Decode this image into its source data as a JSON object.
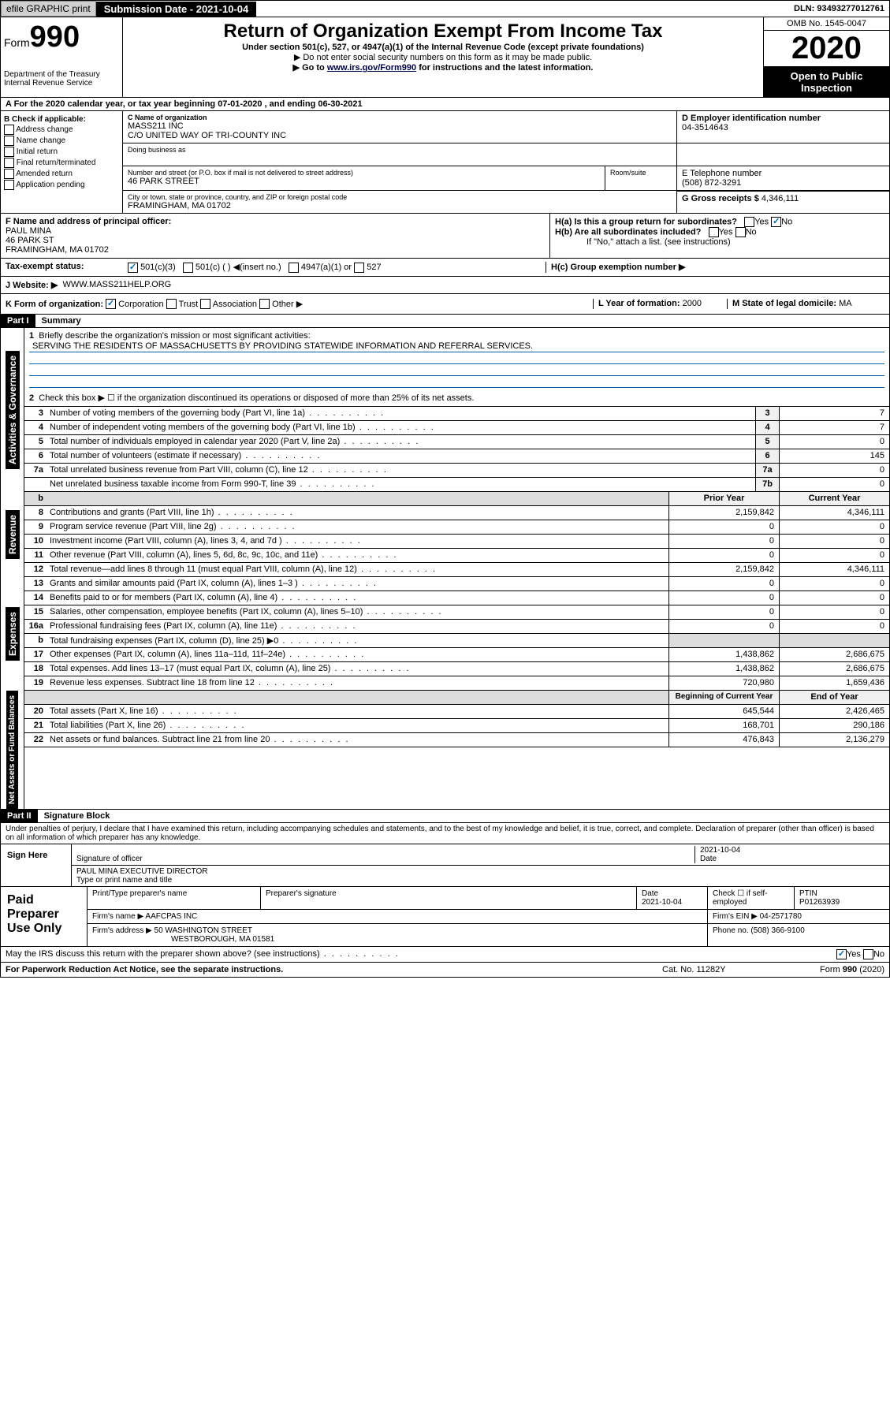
{
  "topbar": {
    "efile": "efile GRAPHIC print",
    "sub_label": "Submission Date - 2021-10-04",
    "dln": "DLN: 93493277012761"
  },
  "header": {
    "form": "Form",
    "num": "990",
    "dept": "Department of the Treasury\nInternal Revenue Service",
    "title": "Return of Organization Exempt From Income Tax",
    "sub": "Under section 501(c), 527, or 4947(a)(1) of the Internal Revenue Code (except private foundations)",
    "note1": "▶ Do not enter social security numbers on this form as it may be made public.",
    "note2_pre": "▶ Go to ",
    "note2_link": "www.irs.gov/Form990",
    "note2_post": " for instructions and the latest information.",
    "omb": "OMB No. 1545-0047",
    "year": "2020",
    "open": "Open to Public Inspection"
  },
  "rowA": "A For the 2020 calendar year, or tax year beginning 07-01-2020    , and ending 06-30-2021",
  "colB": {
    "hdr": "B Check if applicable:",
    "items": [
      "Address change",
      "Name change",
      "Initial return",
      "Final return/terminated",
      "Amended return",
      "Application pending"
    ]
  },
  "colC": {
    "name_lbl": "C Name of organization",
    "name1": "MASS211 INC",
    "name2": "C/O UNITED WAY OF TRI-COUNTY INC",
    "dba_lbl": "Doing business as",
    "addr_lbl": "Number and street (or P.O. box if mail is not delivered to street address)",
    "room_lbl": "Room/suite",
    "addr": "46 PARK STREET",
    "city_lbl": "City or town, state or province, country, and ZIP or foreign postal code",
    "city": "FRAMINGHAM, MA  01702"
  },
  "colD": {
    "ein_lbl": "D Employer identification number",
    "ein": "04-3514643",
    "tel_lbl": "E Telephone number",
    "tel": "(508) 872-3291",
    "gross_lbl": "G Gross receipts $",
    "gross": "4,346,111"
  },
  "rowF": {
    "lbl": "F  Name and address of principal officer:",
    "name": "PAUL MINA",
    "addr1": "46 PARK ST",
    "addr2": "FRAMINGHAM, MA  01702"
  },
  "rowH": {
    "ha": "H(a)  Is this a group return for subordinates?",
    "hb": "H(b)  Are all subordinates included?",
    "hb_note": "If \"No,\" attach a list. (see instructions)",
    "hc": "H(c)  Group exemption number ▶"
  },
  "status": {
    "lbl": "Tax-exempt status:",
    "o1": "501(c)(3)",
    "o2": "501(c) (  ) ◀(insert no.)",
    "o3": "4947(a)(1) or",
    "o4": "527"
  },
  "rowJ": {
    "lbl": "J   Website: ▶",
    "val": "WWW.MASS211HELP.ORG"
  },
  "rowK": {
    "lbl": "K Form of organization:",
    "corp": "Corporation",
    "trust": "Trust",
    "assoc": "Association",
    "other": "Other ▶",
    "l_lbl": "L Year of formation:",
    "l_val": "2000",
    "m_lbl": "M State of legal domicile:",
    "m_val": "MA"
  },
  "part1": {
    "hdr": "Part I",
    "title": "Summary"
  },
  "summary": {
    "l1": "Briefly describe the organization's mission or most significant activities:",
    "mission": "SERVING THE RESIDENTS OF MASSACHUSETTS BY PROVIDING STATEWIDE INFORMATION AND REFERRAL SERVICES.",
    "l2": "Check this box ▶ ☐  if the organization discontinued its operations or disposed of more than 25% of its net assets.",
    "lines": [
      {
        "n": "3",
        "d": "Number of voting members of the governing body (Part VI, line 1a)",
        "b": "3",
        "v": "7"
      },
      {
        "n": "4",
        "d": "Number of independent voting members of the governing body (Part VI, line 1b)",
        "b": "4",
        "v": "7"
      },
      {
        "n": "5",
        "d": "Total number of individuals employed in calendar year 2020 (Part V, line 2a)",
        "b": "5",
        "v": "0"
      },
      {
        "n": "6",
        "d": "Total number of volunteers (estimate if necessary)",
        "b": "6",
        "v": "145"
      },
      {
        "n": "7a",
        "d": "Total unrelated business revenue from Part VIII, column (C), line 12",
        "b": "7a",
        "v": "0"
      },
      {
        "n": "",
        "d": "Net unrelated business taxable income from Form 990-T, line 39",
        "b": "7b",
        "v": "0"
      }
    ],
    "col_hdr1": "Prior Year",
    "col_hdr2": "Current Year",
    "rev": [
      {
        "n": "8",
        "d": "Contributions and grants (Part VIII, line 1h)",
        "p": "2,159,842",
        "c": "4,346,111"
      },
      {
        "n": "9",
        "d": "Program service revenue (Part VIII, line 2g)",
        "p": "0",
        "c": "0"
      },
      {
        "n": "10",
        "d": "Investment income (Part VIII, column (A), lines 3, 4, and 7d )",
        "p": "0",
        "c": "0"
      },
      {
        "n": "11",
        "d": "Other revenue (Part VIII, column (A), lines 5, 6d, 8c, 9c, 10c, and 11e)",
        "p": "0",
        "c": "0"
      },
      {
        "n": "12",
        "d": "Total revenue—add lines 8 through 11 (must equal Part VIII, column (A), line 12)",
        "p": "2,159,842",
        "c": "4,346,111"
      }
    ],
    "exp": [
      {
        "n": "13",
        "d": "Grants and similar amounts paid (Part IX, column (A), lines 1–3 )",
        "p": "0",
        "c": "0"
      },
      {
        "n": "14",
        "d": "Benefits paid to or for members (Part IX, column (A), line 4)",
        "p": "0",
        "c": "0"
      },
      {
        "n": "15",
        "d": "Salaries, other compensation, employee benefits (Part IX, column (A), lines 5–10)",
        "p": "0",
        "c": "0"
      },
      {
        "n": "16a",
        "d": "Professional fundraising fees (Part IX, column (A), line 11e)",
        "p": "0",
        "c": "0"
      },
      {
        "n": "b",
        "d": "Total fundraising expenses (Part IX, column (D), line 25) ▶0",
        "p": "",
        "c": "",
        "shade": true
      },
      {
        "n": "17",
        "d": "Other expenses (Part IX, column (A), lines 11a–11d, 11f–24e)",
        "p": "1,438,862",
        "c": "2,686,675"
      },
      {
        "n": "18",
        "d": "Total expenses. Add lines 13–17 (must equal Part IX, column (A), line 25)",
        "p": "1,438,862",
        "c": "2,686,675"
      },
      {
        "n": "19",
        "d": "Revenue less expenses. Subtract line 18 from line 12",
        "p": "720,980",
        "c": "1,659,436"
      }
    ],
    "na_hdr1": "Beginning of Current Year",
    "na_hdr2": "End of Year",
    "na": [
      {
        "n": "20",
        "d": "Total assets (Part X, line 16)",
        "p": "645,544",
        "c": "2,426,465"
      },
      {
        "n": "21",
        "d": "Total liabilities (Part X, line 26)",
        "p": "168,701",
        "c": "290,186"
      },
      {
        "n": "22",
        "d": "Net assets or fund balances. Subtract line 21 from line 20",
        "p": "476,843",
        "c": "2,136,279"
      }
    ]
  },
  "tabs": {
    "gov": "Activities & Governance",
    "rev": "Revenue",
    "exp": "Expenses",
    "na": "Net Assets or Fund Balances"
  },
  "part2": {
    "hdr": "Part II",
    "title": "Signature Block"
  },
  "perjury": "Under penalties of perjury, I declare that I have examined this return, including accompanying schedules and statements, and to the best of my knowledge and belief, it is true, correct, and complete. Declaration of preparer (other than officer) is based on all information of which preparer has any knowledge.",
  "sign": {
    "here": "Sign Here",
    "sig_lbl": "Signature of officer",
    "date_lbl": "Date",
    "date": "2021-10-04",
    "name": "PAUL MINA  EXECUTIVE DIRECTOR",
    "name_lbl": "Type or print name and title"
  },
  "paid": {
    "hdr": "Paid Preparer Use Only",
    "c1": "Print/Type preparer's name",
    "c2": "Preparer's signature",
    "c3": "Date",
    "c3v": "2021-10-04",
    "c4": "Check ☐ if self-employed",
    "c5": "PTIN",
    "c5v": "P01263939",
    "firm_lbl": "Firm's name    ▶",
    "firm": "AAFCPAS INC",
    "ein_lbl": "Firm's EIN ▶",
    "ein": "04-2571780",
    "addr_lbl": "Firm's address ▶",
    "addr1": "50 WASHINGTON STREET",
    "addr2": "WESTBOROUGH, MA  01581",
    "ph_lbl": "Phone no.",
    "ph": "(508) 366-9100"
  },
  "discuss": "May the IRS discuss this return with the preparer shown above? (see instructions)",
  "footer": {
    "pra": "For Paperwork Reduction Act Notice, see the separate instructions.",
    "cat": "Cat. No. 11282Y",
    "form": "Form 990 (2020)"
  }
}
